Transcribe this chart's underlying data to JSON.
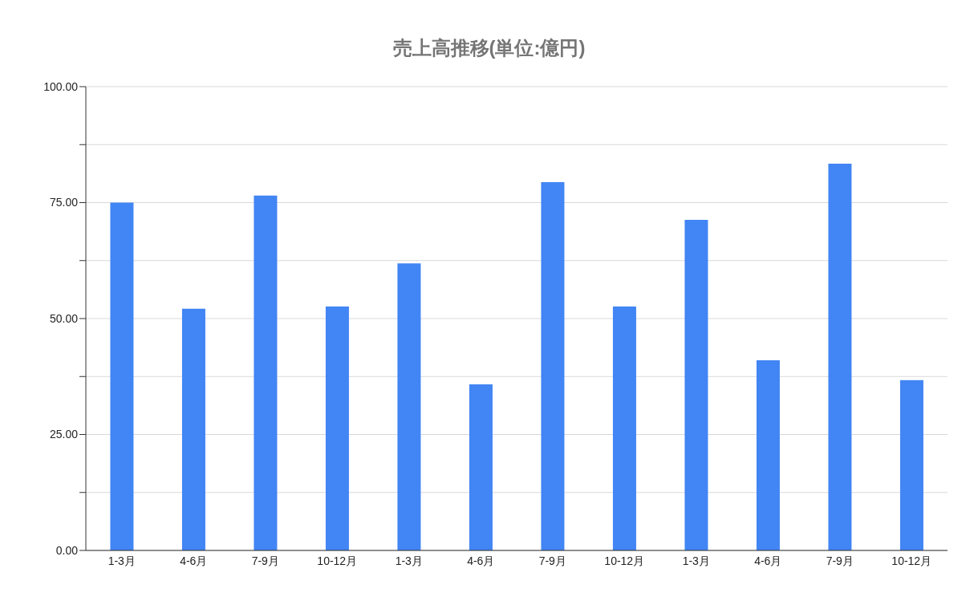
{
  "chart_data": {
    "type": "bar",
    "title": "売上高推移(単位:億円)",
    "categories": [
      "1-3月",
      "4-6月",
      "7-9月",
      "10-12月",
      "1-3月",
      "4-6月",
      "7-9月",
      "10-12月",
      "1-3月",
      "4-6月",
      "7-9月",
      "10-12月"
    ],
    "values": [
      75,
      52.1,
      76.5,
      52.6,
      61.9,
      35.8,
      79.4,
      52.6,
      71.3,
      41.0,
      83.4,
      36.7
    ],
    "color": "#4285f4",
    "ylim": [
      0,
      100
    ],
    "yticks": [
      {
        "value": 0,
        "label": "0.00"
      },
      {
        "value": 12.5,
        "label": null
      },
      {
        "value": 25,
        "label": "25.00"
      },
      {
        "value": 37.5,
        "label": null
      },
      {
        "value": 50,
        "label": "50.00"
      },
      {
        "value": 62.5,
        "label": null
      },
      {
        "value": 75,
        "label": "75.00"
      },
      {
        "value": 87.5,
        "label": null
      },
      {
        "value": 100,
        "label": "100.00"
      }
    ],
    "grid": "y"
  }
}
